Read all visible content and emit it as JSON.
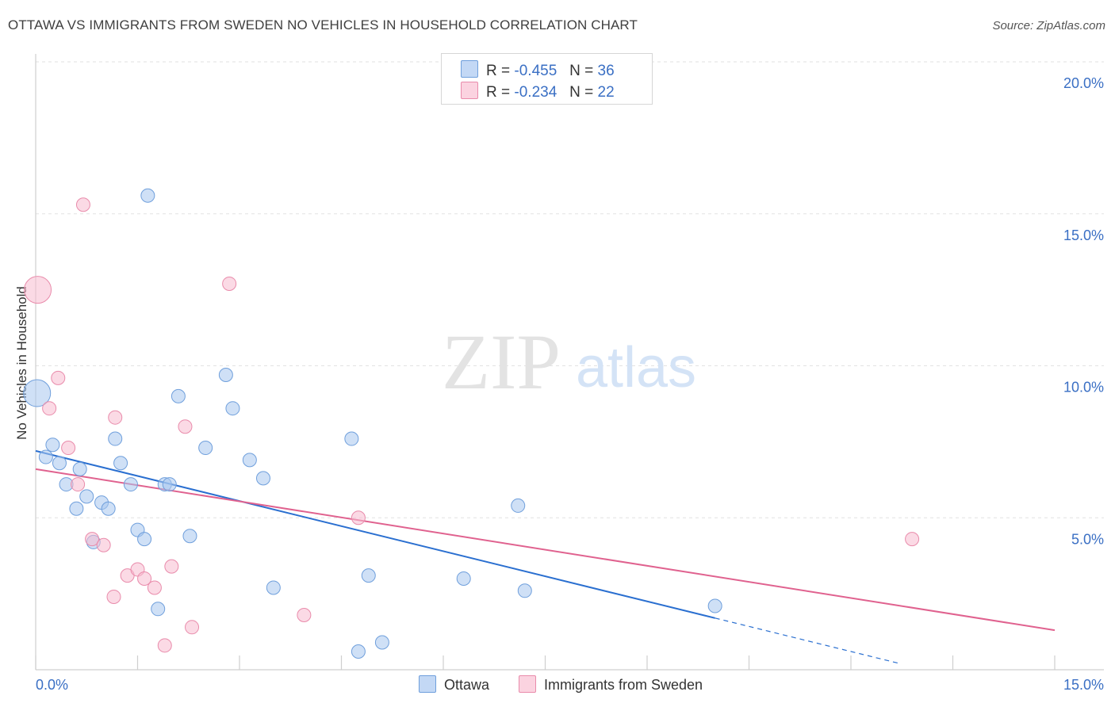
{
  "chart_data": {
    "type": "scatter",
    "title": "OTTAWA VS IMMIGRANTS FROM SWEDEN NO VEHICLES IN HOUSEHOLD CORRELATION CHART",
    "source": "Source: ZipAtlas.com",
    "xlabel": "",
    "ylabel": "No Vehicles in Household",
    "xlim": [
      0,
      15
    ],
    "ylim": [
      0,
      20
    ],
    "x_tick_labels": [
      "0.0%",
      "15.0%"
    ],
    "y_ticks": [
      5,
      10,
      15,
      20
    ],
    "y_tick_labels": [
      "5.0%",
      "10.0%",
      "15.0%",
      "20.0%"
    ],
    "watermark": {
      "zip": "ZIP",
      "atlas": "atlas"
    },
    "legend": [
      {
        "r_label": "R =",
        "r_value": "-0.455",
        "n_label": "N =",
        "n_value": "36"
      },
      {
        "r_label": "R =",
        "r_value": "-0.234",
        "n_label": "N =",
        "n_value": "22"
      }
    ],
    "series": [
      {
        "name": "Ottawa",
        "color": "#a8c6ef",
        "stroke": "#6f9fdc",
        "line_color": "#2a6fd0",
        "trend": {
          "x0": 0,
          "y0": 7.2,
          "x1": 10,
          "y1": 1.7,
          "dash_to_x": 12.7
        },
        "points": [
          [
            0.02,
            9.1,
            "large"
          ],
          [
            0.15,
            7.0
          ],
          [
            0.25,
            7.4
          ],
          [
            0.35,
            6.8
          ],
          [
            0.45,
            6.1
          ],
          [
            0.6,
            5.3
          ],
          [
            0.65,
            6.6
          ],
          [
            0.75,
            5.7
          ],
          [
            0.85,
            4.2
          ],
          [
            0.97,
            5.5
          ],
          [
            1.07,
            5.3
          ],
          [
            1.17,
            7.6
          ],
          [
            1.25,
            6.8
          ],
          [
            1.4,
            6.1
          ],
          [
            1.5,
            4.6
          ],
          [
            1.6,
            4.3
          ],
          [
            1.65,
            15.6
          ],
          [
            1.8,
            2.0
          ],
          [
            1.9,
            6.1
          ],
          [
            1.97,
            6.1
          ],
          [
            2.1,
            9.0
          ],
          [
            2.27,
            4.4
          ],
          [
            2.5,
            7.3
          ],
          [
            2.8,
            9.7
          ],
          [
            2.9,
            8.6
          ],
          [
            3.15,
            6.9
          ],
          [
            3.35,
            6.3
          ],
          [
            3.5,
            2.7
          ],
          [
            4.65,
            7.6
          ],
          [
            4.75,
            0.6
          ],
          [
            4.9,
            3.1
          ],
          [
            5.1,
            0.9
          ],
          [
            6.3,
            3.0
          ],
          [
            7.1,
            5.4
          ],
          [
            7.2,
            2.6
          ],
          [
            10.0,
            2.1
          ]
        ]
      },
      {
        "name": "Immigrants from Sweden",
        "color": "#f7bcd0",
        "stroke": "#e98bab",
        "line_color": "#e0628f",
        "trend": {
          "x0": 0,
          "y0": 6.6,
          "x1": 15,
          "y1": 1.3
        },
        "points": [
          [
            0.03,
            12.5,
            "large"
          ],
          [
            0.2,
            8.6
          ],
          [
            0.33,
            9.6
          ],
          [
            0.48,
            7.3
          ],
          [
            0.62,
            6.1
          ],
          [
            0.83,
            4.3
          ],
          [
            1.0,
            4.1
          ],
          [
            1.15,
            2.4
          ],
          [
            1.17,
            8.3
          ],
          [
            1.35,
            3.1
          ],
          [
            1.5,
            3.3
          ],
          [
            1.6,
            3.0
          ],
          [
            1.75,
            2.7
          ],
          [
            1.9,
            0.8
          ],
          [
            2.0,
            3.4
          ],
          [
            2.2,
            8.0
          ],
          [
            2.3,
            1.4
          ],
          [
            2.85,
            12.7
          ],
          [
            3.95,
            1.8
          ],
          [
            4.75,
            5.0
          ],
          [
            12.9,
            4.3
          ],
          [
            0.7,
            15.3
          ]
        ]
      }
    ]
  }
}
